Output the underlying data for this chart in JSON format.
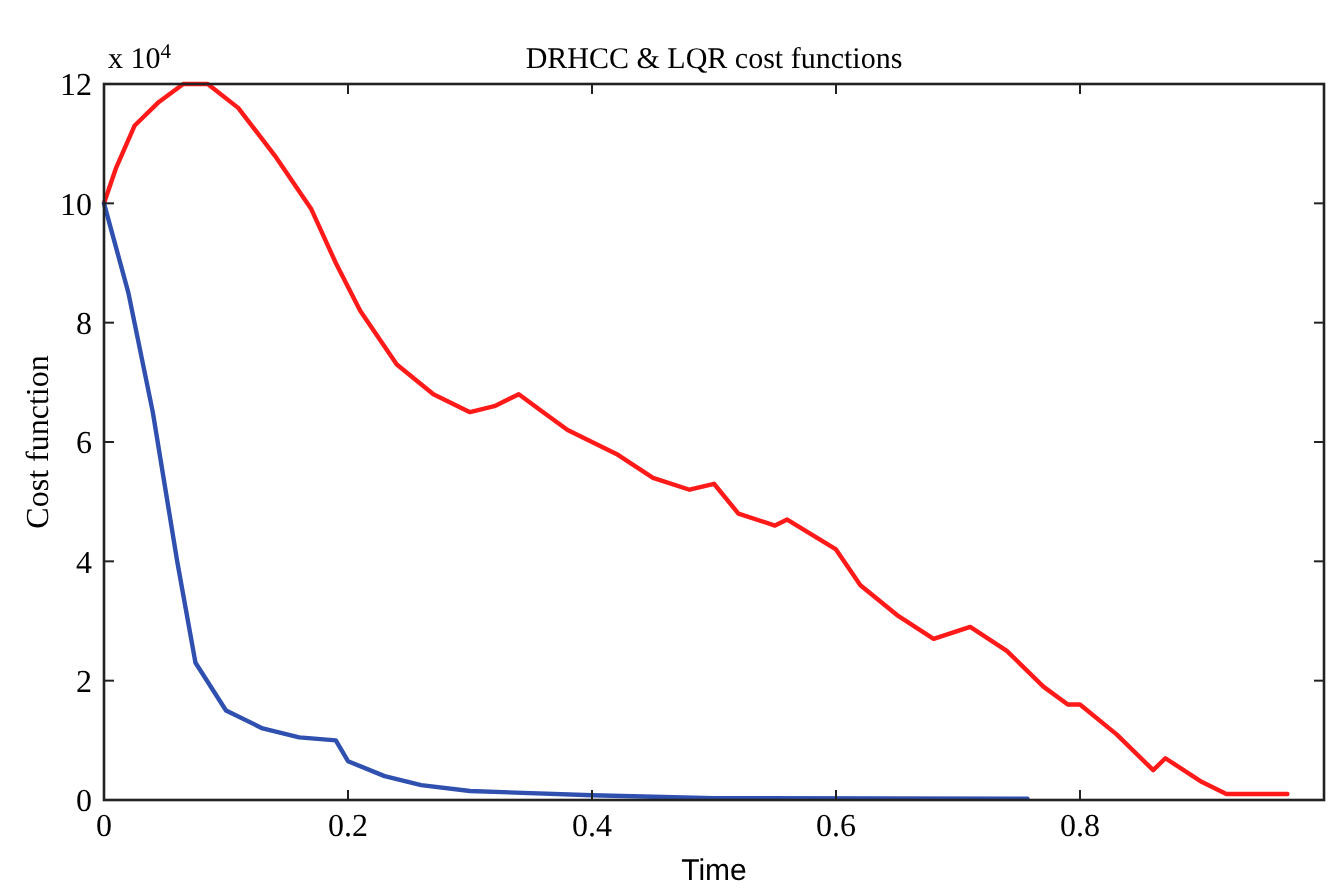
{
  "chart_data": {
    "type": "line",
    "title": "DRHCC & LQR cost functions",
    "xlabel": "Time",
    "ylabel": "Cost function",
    "annotations": [
      "x 10$^{4}$"
    ],
    "xlim": [
      0,
      1
    ],
    "xticks": [
      0,
      0.2,
      0.4,
      0.6,
      0.8
    ],
    "ylim": [
      0,
      12
    ],
    "yticks": [
      0,
      2,
      4,
      6,
      8,
      10,
      12
    ],
    "grid": false,
    "series": [
      {
        "color": "#ff1a1a",
        "x": [
          0,
          0.01,
          0.025,
          0.045,
          0.065,
          0.085,
          0.11,
          0.14,
          0.17,
          0.19,
          0.21,
          0.24,
          0.27,
          0.3,
          0.32,
          0.34,
          0.36,
          0.38,
          0.42,
          0.45,
          0.48,
          0.5,
          0.52,
          0.55,
          0.56,
          0.6,
          0.62,
          0.65,
          0.68,
          0.71,
          0.74,
          0.77,
          0.79,
          0.8,
          0.83,
          0.86,
          0.87,
          0.9,
          0.92,
          0.97
        ],
        "values": [
          10,
          10.6,
          11.3,
          11.7,
          12,
          12,
          11.6,
          10.8,
          9.9,
          9,
          8.2,
          7.3,
          6.8,
          6.5,
          6.6,
          6.8,
          6.5,
          6.2,
          5.8,
          5.4,
          5.2,
          5.3,
          4.8,
          4.6,
          4.7,
          4.2,
          3.6,
          3.1,
          2.7,
          2.9,
          2.5,
          1.9,
          1.6,
          1.6,
          1.1,
          0.5,
          0.7,
          0.3,
          0.1,
          0.1
        ]
      },
      {
        "color": "#3050b0",
        "x": [
          0,
          0.02,
          0.04,
          0.06,
          0.075,
          0.1,
          0.13,
          0.16,
          0.19,
          0.2,
          0.23,
          0.26,
          0.3,
          0.4,
          0.5,
          0.757
        ],
        "values": [
          10,
          8.5,
          6.5,
          4,
          2.3,
          1.5,
          1.2,
          1.05,
          1,
          0.65,
          0.4,
          0.25,
          0.15,
          0.08,
          0.03,
          0.02
        ]
      }
    ]
  }
}
